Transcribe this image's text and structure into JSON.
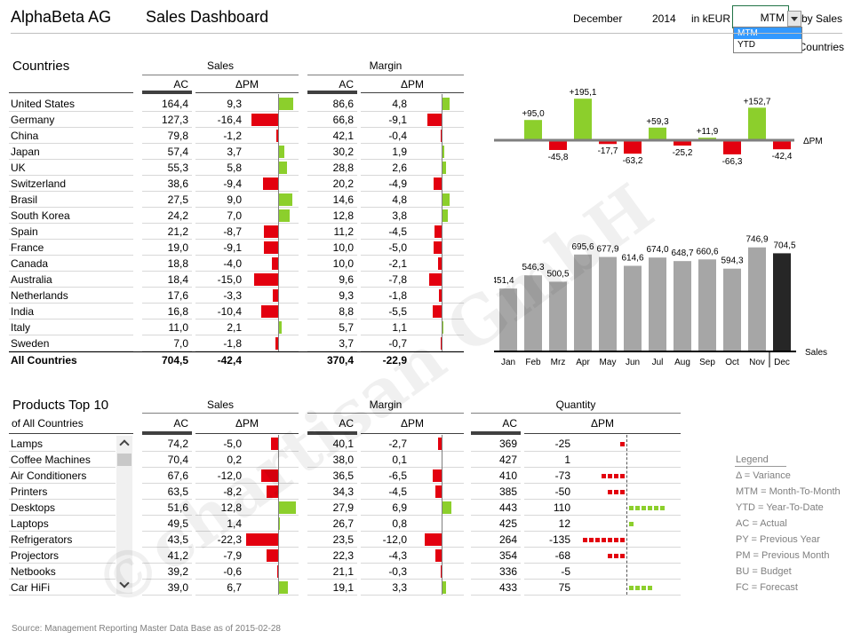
{
  "header": {
    "company": "AlphaBeta AG",
    "title": "Sales Dashboard",
    "month": "December",
    "year": "2014",
    "unit": "in kEUR",
    "period_selected": "MTM",
    "period_options": [
      "MTM",
      "YTD"
    ],
    "sort_label": "by Sales",
    "scope_label": "Countries"
  },
  "countries": {
    "title": "Countries",
    "sales_header": "Sales",
    "margin_header": "Margin",
    "col_ac": "AC",
    "col_dpm": "ΔPM",
    "rows": [
      {
        "name": "United States",
        "s_ac": "164,4",
        "s_dpm": "9,3",
        "s_v": 9.3,
        "m_ac": "86,6",
        "m_dpm": "4,8",
        "m_v": 4.8
      },
      {
        "name": "Germany",
        "s_ac": "127,3",
        "s_dpm": "-16,4",
        "s_v": -16.4,
        "m_ac": "66,8",
        "m_dpm": "-9,1",
        "m_v": -9.1
      },
      {
        "name": "China",
        "s_ac": "79,8",
        "s_dpm": "-1,2",
        "s_v": -1.2,
        "m_ac": "42,1",
        "m_dpm": "-0,4",
        "m_v": -0.4
      },
      {
        "name": "Japan",
        "s_ac": "57,4",
        "s_dpm": "3,7",
        "s_v": 3.7,
        "m_ac": "30,2",
        "m_dpm": "1,9",
        "m_v": 1.9
      },
      {
        "name": "UK",
        "s_ac": "55,3",
        "s_dpm": "5,8",
        "s_v": 5.8,
        "m_ac": "28,8",
        "m_dpm": "2,6",
        "m_v": 2.6
      },
      {
        "name": "Switzerland",
        "s_ac": "38,6",
        "s_dpm": "-9,4",
        "s_v": -9.4,
        "m_ac": "20,2",
        "m_dpm": "-4,9",
        "m_v": -4.9
      },
      {
        "name": "Brasil",
        "s_ac": "27,5",
        "s_dpm": "9,0",
        "s_v": 9.0,
        "m_ac": "14,6",
        "m_dpm": "4,8",
        "m_v": 4.8
      },
      {
        "name": "South Korea",
        "s_ac": "24,2",
        "s_dpm": "7,0",
        "s_v": 7.0,
        "m_ac": "12,8",
        "m_dpm": "3,8",
        "m_v": 3.8
      },
      {
        "name": "Spain",
        "s_ac": "21,2",
        "s_dpm": "-8,7",
        "s_v": -8.7,
        "m_ac": "11,2",
        "m_dpm": "-4,5",
        "m_v": -4.5
      },
      {
        "name": "France",
        "s_ac": "19,0",
        "s_dpm": "-9,1",
        "s_v": -9.1,
        "m_ac": "10,0",
        "m_dpm": "-5,0",
        "m_v": -5.0
      },
      {
        "name": "Canada",
        "s_ac": "18,8",
        "s_dpm": "-4,0",
        "s_v": -4.0,
        "m_ac": "10,0",
        "m_dpm": "-2,1",
        "m_v": -2.1
      },
      {
        "name": "Australia",
        "s_ac": "18,4",
        "s_dpm": "-15,0",
        "s_v": -15.0,
        "m_ac": "9,6",
        "m_dpm": "-7,8",
        "m_v": -7.8
      },
      {
        "name": "Netherlands",
        "s_ac": "17,6",
        "s_dpm": "-3,3",
        "s_v": -3.3,
        "m_ac": "9,3",
        "m_dpm": "-1,8",
        "m_v": -1.8
      },
      {
        "name": "India",
        "s_ac": "16,8",
        "s_dpm": "-10,4",
        "s_v": -10.4,
        "m_ac": "8,8",
        "m_dpm": "-5,5",
        "m_v": -5.5
      },
      {
        "name": "Italy",
        "s_ac": "11,0",
        "s_dpm": "2,1",
        "s_v": 2.1,
        "m_ac": "5,7",
        "m_dpm": "1,1",
        "m_v": 1.1
      },
      {
        "name": "Sweden",
        "s_ac": "7,0",
        "s_dpm": "-1,8",
        "s_v": -1.8,
        "m_ac": "3,7",
        "m_dpm": "-0,7",
        "m_v": -0.7
      }
    ],
    "total": {
      "name": "All Countries",
      "s_ac": "704,5",
      "s_dpm": "-42,4",
      "m_ac": "370,4",
      "m_dpm": "-22,9"
    }
  },
  "products": {
    "title": "Products Top 10",
    "subtitle": "of All Countries",
    "sales_header": "Sales",
    "margin_header": "Margin",
    "quantity_header": "Quantity",
    "col_ac": "AC",
    "col_dpm": "ΔPM",
    "rows": [
      {
        "name": "Lamps",
        "s_ac": "74,2",
        "s_dpm": "-5,0",
        "s_v": -5.0,
        "m_ac": "40,1",
        "m_dpm": "-2,7",
        "m_v": -2.7,
        "q_ac": "369",
        "q_dpm": "-25",
        "q_v": -25
      },
      {
        "name": "Coffee Machines",
        "s_ac": "70,4",
        "s_dpm": "0,2",
        "s_v": 0.2,
        "m_ac": "38,0",
        "m_dpm": "0,1",
        "m_v": 0.1,
        "q_ac": "427",
        "q_dpm": "1",
        "q_v": 1
      },
      {
        "name": "Air Conditioners",
        "s_ac": "67,6",
        "s_dpm": "-12,0",
        "s_v": -12.0,
        "m_ac": "36,5",
        "m_dpm": "-6,5",
        "m_v": -6.5,
        "q_ac": "410",
        "q_dpm": "-73",
        "q_v": -73
      },
      {
        "name": "Printers",
        "s_ac": "63,5",
        "s_dpm": "-8,2",
        "s_v": -8.2,
        "m_ac": "34,3",
        "m_dpm": "-4,5",
        "m_v": -4.5,
        "q_ac": "385",
        "q_dpm": "-50",
        "q_v": -50
      },
      {
        "name": "Desktops",
        "s_ac": "51,6",
        "s_dpm": "12,8",
        "s_v": 12.8,
        "m_ac": "27,9",
        "m_dpm": "6,9",
        "m_v": 6.9,
        "q_ac": "443",
        "q_dpm": "110",
        "q_v": 110
      },
      {
        "name": "Laptops",
        "s_ac": "49,5",
        "s_dpm": "1,4",
        "s_v": 1.4,
        "m_ac": "26,7",
        "m_dpm": "0,8",
        "m_v": 0.8,
        "q_ac": "425",
        "q_dpm": "12",
        "q_v": 12
      },
      {
        "name": "Refrigerators",
        "s_ac": "43,5",
        "s_dpm": "-22,3",
        "s_v": -22.3,
        "m_ac": "23,5",
        "m_dpm": "-12,0",
        "m_v": -12.0,
        "q_ac": "264",
        "q_dpm": "-135",
        "q_v": -135
      },
      {
        "name": "Projectors",
        "s_ac": "41,2",
        "s_dpm": "-7,9",
        "s_v": -7.9,
        "m_ac": "22,3",
        "m_dpm": "-4,3",
        "m_v": -4.3,
        "q_ac": "354",
        "q_dpm": "-68",
        "q_v": -68
      },
      {
        "name": "Netbooks",
        "s_ac": "39,2",
        "s_dpm": "-0,6",
        "s_v": -0.6,
        "m_ac": "21,1",
        "m_dpm": "-0,3",
        "m_v": -0.3,
        "q_ac": "336",
        "q_dpm": "-5",
        "q_v": -5
      },
      {
        "name": "Car HiFi",
        "s_ac": "39,0",
        "s_dpm": "6,7",
        "s_v": 6.7,
        "m_ac": "19,1",
        "m_dpm": "3,3",
        "m_v": 3.3,
        "q_ac": "433",
        "q_dpm": "75",
        "q_v": 75
      }
    ]
  },
  "legend": {
    "title": "Legend",
    "items": [
      "Δ = Variance",
      "MTM = Month-To-Month",
      "YTD = Year-To-Date",
      "AC = Actual",
      "PY = Previous Year",
      "PM = Previous Month",
      "BU = Budget",
      "FC = Forecast"
    ]
  },
  "footer": {
    "source": "Source: Management Reporting Master Data Base as of 2015-02-28"
  },
  "watermark": "©chartisan GmbH",
  "colors": {
    "positive": "#8ccf2c",
    "negative": "#e3000f",
    "actual": "#a6a6a6",
    "current": "#262626",
    "ink": "#000000"
  },
  "chart_data": [
    {
      "type": "bar",
      "title": "",
      "ylabel": "ΔPM",
      "categories": [
        "Jan",
        "Feb",
        "Mrz",
        "Apr",
        "May",
        "Jun",
        "Jul",
        "Aug",
        "Sep",
        "Oct",
        "Nov",
        "Dec"
      ],
      "values": [
        null,
        95.0,
        -45.8,
        195.1,
        -17.7,
        -63.2,
        59.3,
        -25.2,
        11.9,
        -66.3,
        152.7,
        -42.4
      ],
      "labels": [
        "",
        "+95,0",
        "-45,8",
        "+195,1",
        "-17,7",
        "-63,2",
        "+59,3",
        "-25,2",
        "+11,9",
        "-66,3",
        "+152,7",
        "-42,4"
      ]
    },
    {
      "type": "bar",
      "title": "",
      "ylabel": "Sales",
      "categories": [
        "Jan",
        "Feb",
        "Mrz",
        "Apr",
        "May",
        "Jun",
        "Jul",
        "Aug",
        "Sep",
        "Oct",
        "Nov",
        "Dec"
      ],
      "values": [
        451.4,
        546.3,
        500.5,
        695.6,
        677.9,
        614.6,
        674.0,
        648.7,
        660.6,
        594.3,
        746.9,
        704.5
      ],
      "labels": [
        "451,4",
        "546,3",
        "500,5",
        "695,6",
        "677,9",
        "614,6",
        "674,0",
        "648,7",
        "660,6",
        "594,3",
        "746,9",
        "704,5"
      ],
      "highlight": "Dec"
    }
  ]
}
